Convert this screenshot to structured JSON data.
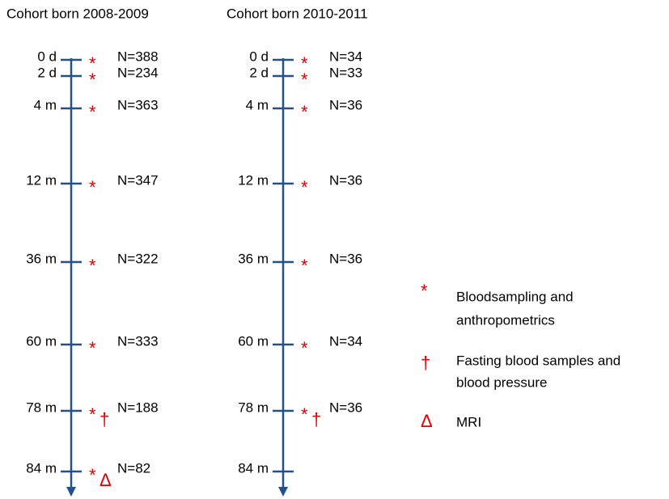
{
  "cohorts": [
    {
      "title": "Cohort born 2008-2009",
      "timepoints": [
        {
          "label": "0 d",
          "symbols": [
            "*"
          ],
          "n": "N=388"
        },
        {
          "label": "2 d",
          "symbols": [
            "*"
          ],
          "n": "N=234"
        },
        {
          "label": "4 m",
          "symbols": [
            "*"
          ],
          "n": "N=363"
        },
        {
          "label": "12 m",
          "symbols": [
            "*"
          ],
          "n": "N=347"
        },
        {
          "label": "36 m",
          "symbols": [
            "*"
          ],
          "n": "N=322"
        },
        {
          "label": "60 m",
          "symbols": [
            "*"
          ],
          "n": "N=333"
        },
        {
          "label": "78 m",
          "symbols": [
            "*",
            "†"
          ],
          "n": "N=188"
        },
        {
          "label": "84 m",
          "symbols": [
            "*",
            "Δ"
          ],
          "n": "N=82"
        }
      ]
    },
    {
      "title": "Cohort born 2010-2011",
      "timepoints": [
        {
          "label": "0 d",
          "symbols": [
            "*"
          ],
          "n": "N=34"
        },
        {
          "label": "2 d",
          "symbols": [
            "*"
          ],
          "n": "N=33"
        },
        {
          "label": "4 m",
          "symbols": [
            "*"
          ],
          "n": "N=36"
        },
        {
          "label": "12 m",
          "symbols": [
            "*"
          ],
          "n": "N=36"
        },
        {
          "label": "36 m",
          "symbols": [
            "*"
          ],
          "n": "N=36"
        },
        {
          "label": "60 m",
          "symbols": [
            "*"
          ],
          "n": "N=34"
        },
        {
          "label": "78 m",
          "symbols": [
            "*",
            "†"
          ],
          "n": "N=36"
        },
        {
          "label": "84 m",
          "symbols": [],
          "n": null
        }
      ]
    }
  ],
  "legend": [
    {
      "symbol": "*",
      "lines": [
        "Bloodsampling and",
        "anthropometrics"
      ]
    },
    {
      "symbol": "†",
      "lines": [
        "Fasting blood samples and",
        "blood pressure"
      ]
    },
    {
      "symbol": "Δ",
      "lines": [
        "MRI"
      ]
    }
  ]
}
